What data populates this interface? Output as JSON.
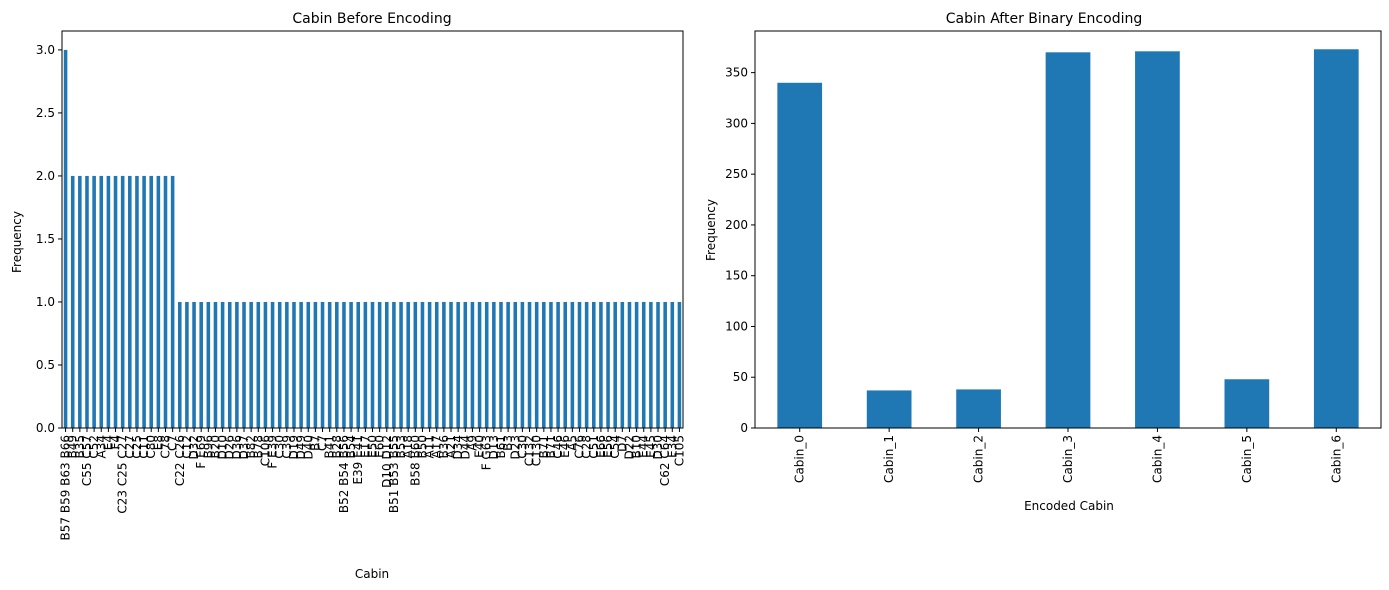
{
  "chart_data": [
    {
      "type": "bar",
      "title": "Cabin Before Encoding",
      "xlabel": "Cabin",
      "ylabel": "Frequency",
      "ylim": [
        0,
        3.15
      ],
      "yticks": [
        "0.0",
        "0.5",
        "1.0",
        "1.5",
        "2.0",
        "2.5",
        "3.0"
      ],
      "ytick_values": [
        0,
        0.5,
        1.0,
        1.5,
        2.0,
        2.5,
        3.0
      ],
      "bar_color": "#1f77b4",
      "grid": false,
      "x_tick_labels_rotated": true,
      "categories": [
        "B57 B59 B63 B66",
        "B49",
        "B35",
        "C55 C57",
        "C52",
        "A34",
        "E4",
        "F4",
        "C23 C25 C27",
        "C27",
        "C25",
        "C11",
        "C80",
        "E8",
        "C78",
        "C7",
        "C22 C26",
        "C12",
        "D32",
        "F E69",
        "B96",
        "B20",
        "D10",
        "D26",
        "D36",
        "D37",
        "B82",
        "B78",
        "C106",
        "F E39",
        "C30",
        "C39",
        "D19",
        "D49",
        "D40",
        "B7",
        "C7",
        "B41",
        "B28",
        "B52 B54 B56",
        "B54",
        "E39 E41",
        "E17",
        "E50",
        "E60",
        "D10 D12",
        "B51 B53 B55",
        "B53",
        "A18",
        "B58 B60",
        "B50",
        "A11",
        "A17",
        "B36",
        "A21",
        "D34",
        "D44",
        "A9",
        "E40",
        "F G63",
        "D13",
        "B61",
        "B3",
        "D23",
        "C30",
        "C132",
        "C130",
        "B71",
        "B71",
        "C46",
        "E46",
        "A5",
        "C76",
        "C28",
        "C51",
        "E66",
        "E56",
        "C54",
        "D7",
        "D22",
        "B10",
        "E44",
        "E45",
        "D30",
        "C62 C64",
        "E34",
        "C105"
      ],
      "values": [
        3,
        2,
        2,
        2,
        2,
        2,
        2,
        2,
        2,
        2,
        2,
        2,
        2,
        2,
        2,
        2,
        1,
        1,
        1,
        1,
        1,
        1,
        1,
        1,
        1,
        1,
        1,
        1,
        1,
        1,
        1,
        1,
        1,
        1,
        1,
        1,
        1,
        1,
        1,
        1,
        1,
        1,
        1,
        1,
        1,
        1,
        1,
        1,
        1,
        1,
        1,
        1,
        1,
        1,
        1,
        1,
        1,
        1,
        1,
        1,
        1,
        1,
        1,
        1,
        1,
        1,
        1,
        1,
        1,
        1,
        1,
        1,
        1,
        1,
        1,
        1,
        1,
        1,
        1,
        1,
        1,
        1,
        1,
        1,
        1,
        1,
        1
      ]
    },
    {
      "type": "bar",
      "title": "Cabin After Binary Encoding",
      "xlabel": "Encoded Cabin",
      "ylabel": "Frequency",
      "ylim": [
        0,
        391
      ],
      "yticks": [
        "0",
        "50",
        "100",
        "150",
        "200",
        "250",
        "300",
        "350"
      ],
      "ytick_values": [
        0,
        50,
        100,
        150,
        200,
        250,
        300,
        350
      ],
      "bar_color": "#1f77b4",
      "grid": false,
      "x_tick_labels_rotated": true,
      "categories": [
        "Cabin_0",
        "Cabin_1",
        "Cabin_2",
        "Cabin_3",
        "Cabin_4",
        "Cabin_5",
        "Cabin_6"
      ],
      "values": [
        340,
        37,
        38,
        370,
        371,
        48,
        373
      ]
    }
  ]
}
